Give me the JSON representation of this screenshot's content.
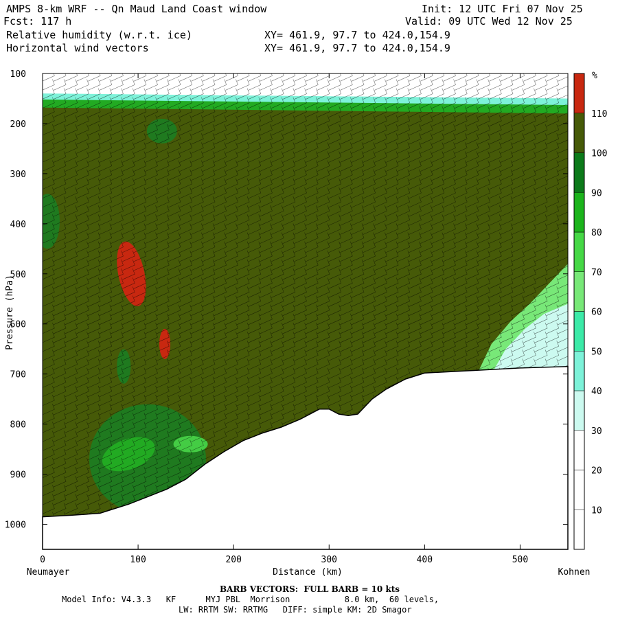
{
  "header": {
    "line1_left": "AMPS 8-km WRF -- Qn Maud Land Coast window",
    "line2_left": "Fcst: 117 h",
    "line3_left": "Relative humidity (w.r.t. ice)",
    "line4_left": "Horizontal wind vectors",
    "line1_right": "Init: 12 UTC Fri 07 Nov 25",
    "line2_right": "Valid: 09 UTC Wed 12 Nov 25",
    "line3_mid": "XY= 461.9, 97.7 to 424.0,154.9",
    "line4_mid": "XY= 461.9, 97.7 to 424.0,154.9"
  },
  "chart_data": {
    "type": "heatmap",
    "xlabel": "Distance (km)",
    "ylabel": "Pressure (hPa)",
    "xlim": [
      0,
      550
    ],
    "ylim": [
      1050,
      100
    ],
    "x_ticks": [
      0,
      100,
      200,
      300,
      400,
      500
    ],
    "y_ticks": [
      100,
      200,
      300,
      400,
      500,
      600,
      700,
      800,
      900,
      1000
    ],
    "endpoint_left": "Neumayer",
    "endpoint_right": "Kohnen",
    "terrain_surface_hpa": [
      [
        0,
        985
      ],
      [
        30,
        982
      ],
      [
        60,
        978
      ],
      [
        90,
        960
      ],
      [
        110,
        945
      ],
      [
        130,
        930
      ],
      [
        150,
        910
      ],
      [
        170,
        880
      ],
      [
        190,
        855
      ],
      [
        210,
        833
      ],
      [
        230,
        818
      ],
      [
        250,
        806
      ],
      [
        270,
        790
      ],
      [
        290,
        770
      ],
      [
        300,
        770
      ],
      [
        310,
        780
      ],
      [
        320,
        783
      ],
      [
        330,
        780
      ],
      [
        345,
        750
      ],
      [
        360,
        730
      ],
      [
        380,
        710
      ],
      [
        400,
        698
      ],
      [
        450,
        693
      ],
      [
        500,
        688
      ],
      [
        550,
        685
      ]
    ],
    "colorbar": {
      "unit": "%",
      "labels": [
        10,
        20,
        30,
        40,
        50,
        60,
        70,
        80,
        90,
        100,
        110
      ],
      "colors": [
        "#ffffff",
        "#ffffff",
        "#ffffff",
        "#ccfaf0",
        "#7df2d9",
        "#3ceaa8",
        "#78e878",
        "#46d846",
        "#1cb41c",
        "#0c7a1a",
        "#465a08",
        "#c82810"
      ]
    },
    "moist_colors": {
      "background": "#465a08",
      "level_90_100": "#1f7a1f",
      "level_80_90": "#22aa22",
      "level_70_80": "#44cc44",
      "above_110": "#c82810"
    }
  },
  "footer": {
    "barb_title": "BARB VECTORS:  FULL BARB = 10 kts",
    "model_line": "Model Info: V4.3.3   KF      MYJ PBL  Morrison           8.0 km,  60 levels,",
    "physics_line": "LW: RRTM SW: RRTMG   DIFF: simple KM: 2D Smagor"
  }
}
